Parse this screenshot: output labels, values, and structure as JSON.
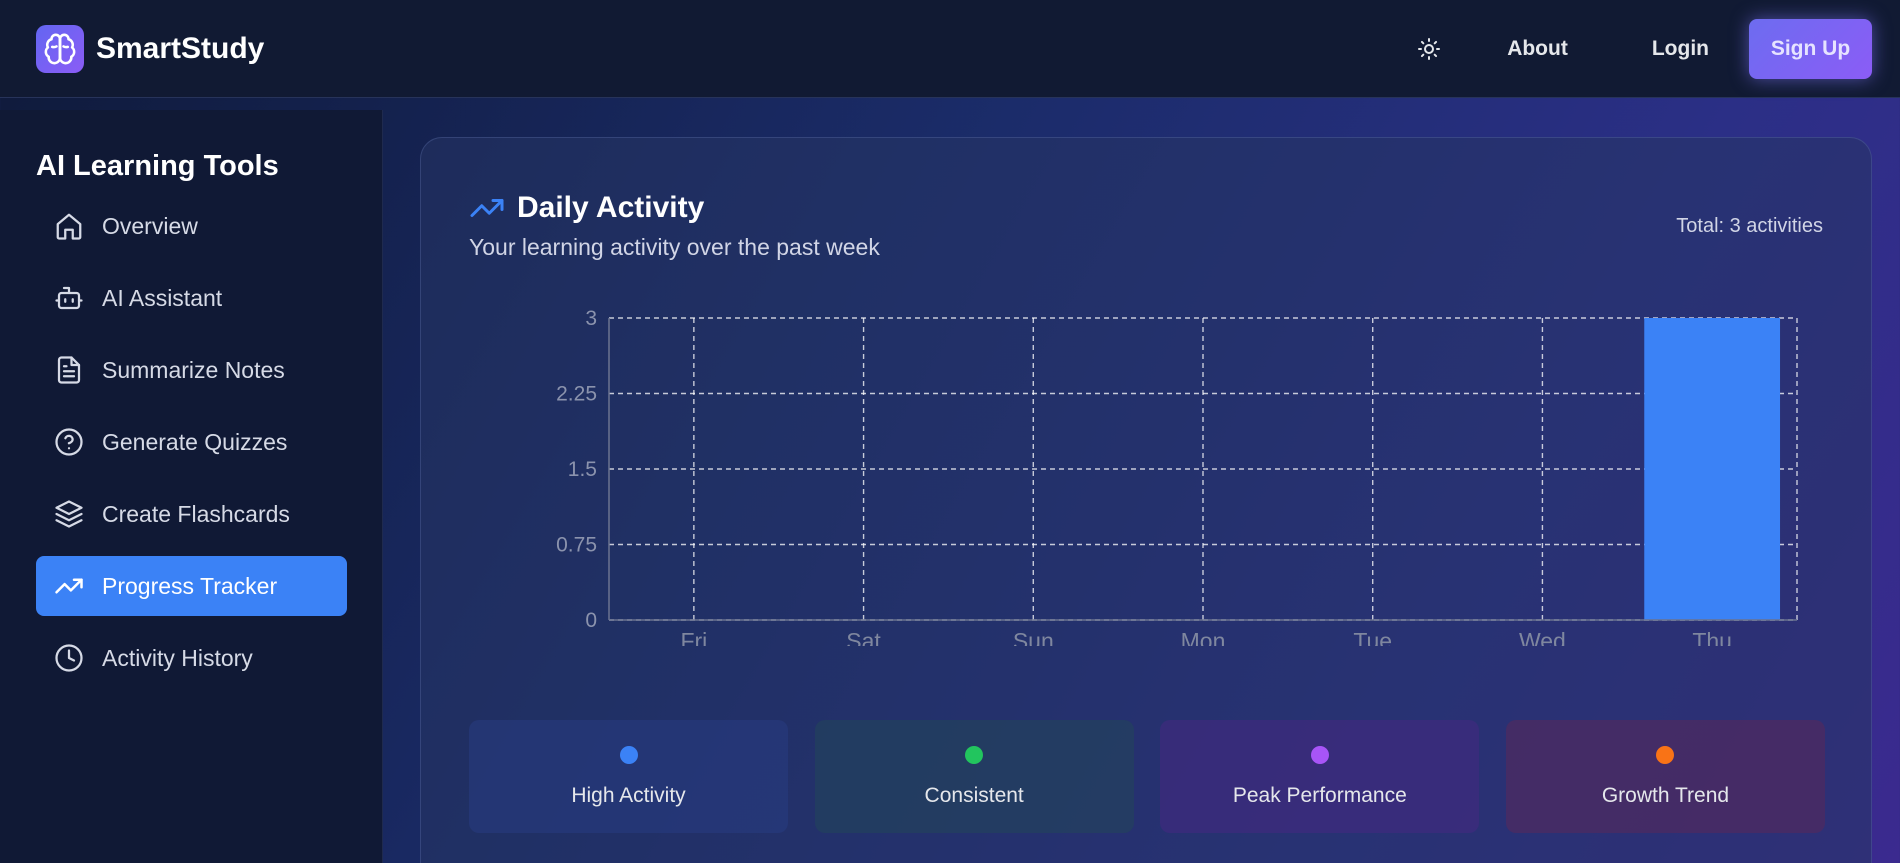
{
  "header": {
    "brand": "SmartStudy",
    "brand_icon": "brain-icon",
    "theme_icon": "sun-icon",
    "nav": {
      "about": "About",
      "login": "Login",
      "signup": "Sign Up"
    }
  },
  "sidebar": {
    "title": "AI Learning Tools",
    "items": [
      {
        "label": "Overview",
        "icon": "home-icon",
        "active": false
      },
      {
        "label": "AI Assistant",
        "icon": "bot-icon",
        "active": false
      },
      {
        "label": "Summarize Notes",
        "icon": "document-icon",
        "active": false
      },
      {
        "label": "Generate Quizzes",
        "icon": "help-circle-icon",
        "active": false
      },
      {
        "label": "Create Flashcards",
        "icon": "layers-icon",
        "active": false
      },
      {
        "label": "Progress Tracker",
        "icon": "trending-up-icon",
        "active": true
      },
      {
        "label": "Activity History",
        "icon": "clock-icon",
        "active": false
      }
    ]
  },
  "activity": {
    "title": "Daily Activity",
    "subtitle": "Your learning activity over the past week",
    "total": "Total: 3 activities",
    "legend": [
      {
        "label": "High Activity",
        "color": "#3b82f6"
      },
      {
        "label": "Consistent",
        "color": "#22c55e"
      },
      {
        "label": "Peak Performance",
        "color": "#a855f7"
      },
      {
        "label": "Growth Trend",
        "color": "#f97316"
      }
    ]
  },
  "chart_data": {
    "type": "bar",
    "categories": [
      "Fri",
      "Sat",
      "Sun",
      "Mon",
      "Tue",
      "Wed",
      "Thu"
    ],
    "values": [
      0,
      0,
      0,
      0,
      0,
      0,
      3
    ],
    "yticks": [
      "0",
      "0.75",
      "1.5",
      "2.25",
      "3"
    ],
    "ylim": [
      0,
      3
    ],
    "grid": true,
    "bar_color": "#3b82f6",
    "title": "",
    "xlabel": "",
    "ylabel": ""
  }
}
